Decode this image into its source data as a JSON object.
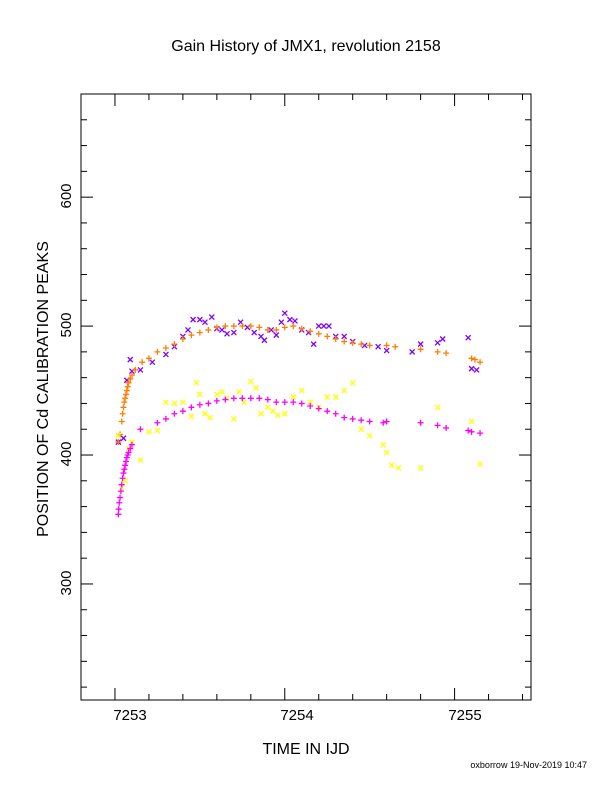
{
  "chart_data": {
    "type": "scatter",
    "title": "Gain History of JMX1, revolution 2158",
    "xlabel": "TIME IN IJD",
    "ylabel": "POSITION OF Cd CALIBRATION PEAKS",
    "xlim": [
      7252.8,
      7255.45
    ],
    "ylim": [
      210,
      680
    ],
    "x_ticks": [
      "7253",
      "7254",
      "7255"
    ],
    "y_ticks": [
      "300",
      "400",
      "500",
      "600"
    ],
    "grid": false,
    "legend": "none",
    "series": [
      {
        "marker": "x",
        "color": "#7f00ff",
        "points": [
          [
            7253.02,
            410
          ],
          [
            7253.05,
            413
          ],
          [
            7253.07,
            458
          ],
          [
            7253.09,
            474
          ],
          [
            7253.1,
            465
          ],
          [
            7253.15,
            466
          ],
          [
            7253.22,
            472
          ],
          [
            7253.3,
            478
          ],
          [
            7253.35,
            484
          ],
          [
            7253.4,
            492
          ],
          [
            7253.43,
            497
          ],
          [
            7253.46,
            505
          ],
          [
            7253.5,
            505
          ],
          [
            7253.53,
            503
          ],
          [
            7253.57,
            507
          ],
          [
            7253.6,
            498
          ],
          [
            7253.63,
            497
          ],
          [
            7253.66,
            494
          ],
          [
            7253.7,
            495
          ],
          [
            7253.74,
            503
          ],
          [
            7253.78,
            499
          ],
          [
            7253.82,
            495
          ],
          [
            7253.86,
            492
          ],
          [
            7253.88,
            489
          ],
          [
            7253.92,
            497
          ],
          [
            7253.95,
            493
          ],
          [
            7253.98,
            503
          ],
          [
            7254.0,
            510
          ],
          [
            7254.03,
            505
          ],
          [
            7254.06,
            504
          ],
          [
            7254.1,
            497
          ],
          [
            7254.14,
            495
          ],
          [
            7254.17,
            486
          ],
          [
            7254.2,
            500
          ],
          [
            7254.23,
            500
          ],
          [
            7254.26,
            500
          ],
          [
            7254.3,
            492
          ],
          [
            7254.35,
            492
          ],
          [
            7254.4,
            488
          ],
          [
            7254.47,
            485
          ],
          [
            7254.55,
            484
          ],
          [
            7254.6,
            481
          ],
          [
            7254.75,
            480
          ],
          [
            7254.8,
            486
          ],
          [
            7254.9,
            487
          ],
          [
            7254.93,
            490
          ],
          [
            7255.08,
            491
          ],
          [
            7255.1,
            467
          ],
          [
            7255.13,
            466
          ]
        ]
      },
      {
        "marker": "+",
        "color": "#ff7f00",
        "points": [
          [
            7253.02,
            410
          ],
          [
            7253.03,
            416
          ],
          [
            7253.04,
            426
          ],
          [
            7253.045,
            432
          ],
          [
            7253.05,
            437
          ],
          [
            7253.055,
            441
          ],
          [
            7253.06,
            444
          ],
          [
            7253.065,
            447
          ],
          [
            7253.07,
            450
          ],
          [
            7253.075,
            453
          ],
          [
            7253.08,
            456
          ],
          [
            7253.09,
            459
          ],
          [
            7253.1,
            462
          ],
          [
            7253.12,
            466
          ],
          [
            7253.16,
            472
          ],
          [
            7253.2,
            475
          ],
          [
            7253.25,
            480
          ],
          [
            7253.3,
            483
          ],
          [
            7253.35,
            486
          ],
          [
            7253.4,
            490
          ],
          [
            7253.45,
            493
          ],
          [
            7253.5,
            495
          ],
          [
            7253.55,
            497
          ],
          [
            7253.6,
            499
          ],
          [
            7253.65,
            500
          ],
          [
            7253.7,
            500
          ],
          [
            7253.75,
            500
          ],
          [
            7253.8,
            500
          ],
          [
            7253.85,
            499
          ],
          [
            7253.9,
            497
          ],
          [
            7253.95,
            497
          ],
          [
            7254.0,
            499
          ],
          [
            7254.05,
            500
          ],
          [
            7254.1,
            498
          ],
          [
            7254.15,
            496
          ],
          [
            7254.2,
            494
          ],
          [
            7254.25,
            492
          ],
          [
            7254.3,
            490
          ],
          [
            7254.35,
            488
          ],
          [
            7254.4,
            487
          ],
          [
            7254.45,
            486
          ],
          [
            7254.5,
            485
          ],
          [
            7254.6,
            485
          ],
          [
            7254.65,
            484
          ],
          [
            7254.8,
            482
          ],
          [
            7254.9,
            480
          ],
          [
            7254.95,
            479
          ],
          [
            7255.1,
            475
          ],
          [
            7255.12,
            474
          ],
          [
            7255.15,
            472
          ]
        ]
      },
      {
        "marker": "x",
        "color": "#ffff00",
        "points": [
          [
            7253.02,
            415
          ],
          [
            7253.04,
            375
          ],
          [
            7253.06,
            380
          ],
          [
            7253.08,
            405
          ],
          [
            7253.1,
            410
          ],
          [
            7253.15,
            396
          ],
          [
            7253.2,
            418
          ],
          [
            7253.25,
            419
          ],
          [
            7253.3,
            441
          ],
          [
            7253.35,
            440
          ],
          [
            7253.4,
            441
          ],
          [
            7253.45,
            430
          ],
          [
            7253.48,
            456
          ],
          [
            7253.5,
            447
          ],
          [
            7253.53,
            432
          ],
          [
            7253.56,
            429
          ],
          [
            7253.6,
            447
          ],
          [
            7253.63,
            449
          ],
          [
            7253.66,
            444
          ],
          [
            7253.7,
            428
          ],
          [
            7253.73,
            449
          ],
          [
            7253.76,
            441
          ],
          [
            7253.8,
            457
          ],
          [
            7253.83,
            452
          ],
          [
            7253.86,
            432
          ],
          [
            7253.9,
            437
          ],
          [
            7253.93,
            434
          ],
          [
            7253.96,
            431
          ],
          [
            7254.0,
            432
          ],
          [
            7254.05,
            445
          ],
          [
            7254.1,
            450
          ],
          [
            7254.15,
            441
          ],
          [
            7254.2,
            437
          ],
          [
            7254.25,
            445
          ],
          [
            7254.3,
            445
          ],
          [
            7254.35,
            450
          ],
          [
            7254.4,
            456
          ],
          [
            7254.45,
            420
          ],
          [
            7254.5,
            415
          ],
          [
            7254.58,
            408
          ],
          [
            7254.6,
            402
          ],
          [
            7254.63,
            392
          ],
          [
            7254.67,
            390
          ],
          [
            7254.8,
            390
          ],
          [
            7254.9,
            437
          ],
          [
            7255.1,
            426
          ],
          [
            7255.15,
            393
          ]
        ]
      },
      {
        "marker": "+",
        "color": "#ff00ff",
        "points": [
          [
            7253.02,
            354
          ],
          [
            7253.022,
            358
          ],
          [
            7253.025,
            363
          ],
          [
            7253.03,
            367
          ],
          [
            7253.035,
            372
          ],
          [
            7253.04,
            377
          ],
          [
            7253.045,
            382
          ],
          [
            7253.05,
            386
          ],
          [
            7253.055,
            389
          ],
          [
            7253.06,
            392
          ],
          [
            7253.065,
            395
          ],
          [
            7253.07,
            398
          ],
          [
            7253.075,
            400
          ],
          [
            7253.08,
            402
          ],
          [
            7253.09,
            405
          ],
          [
            7253.1,
            408
          ],
          [
            7253.15,
            420
          ],
          [
            7253.25,
            425
          ],
          [
            7253.3,
            428
          ],
          [
            7253.35,
            432
          ],
          [
            7253.4,
            434
          ],
          [
            7253.45,
            437
          ],
          [
            7253.5,
            439
          ],
          [
            7253.55,
            440
          ],
          [
            7253.6,
            442
          ],
          [
            7253.65,
            443
          ],
          [
            7253.7,
            444
          ],
          [
            7253.75,
            444
          ],
          [
            7253.8,
            444
          ],
          [
            7253.85,
            444
          ],
          [
            7253.9,
            443
          ],
          [
            7253.95,
            441
          ],
          [
            7254.0,
            441
          ],
          [
            7254.05,
            441
          ],
          [
            7254.1,
            440
          ],
          [
            7254.15,
            438
          ],
          [
            7254.2,
            436
          ],
          [
            7254.25,
            434
          ],
          [
            7254.3,
            432
          ],
          [
            7254.35,
            429
          ],
          [
            7254.4,
            428
          ],
          [
            7254.45,
            427
          ],
          [
            7254.5,
            426
          ],
          [
            7254.58,
            425
          ],
          [
            7254.6,
            426
          ],
          [
            7254.8,
            425
          ],
          [
            7254.9,
            423
          ],
          [
            7254.95,
            421
          ],
          [
            7255.08,
            419
          ],
          [
            7255.1,
            418
          ],
          [
            7255.15,
            417
          ]
        ]
      }
    ]
  },
  "footer": {
    "credit": "oxborrow 19-Nov-2019 10:47"
  }
}
